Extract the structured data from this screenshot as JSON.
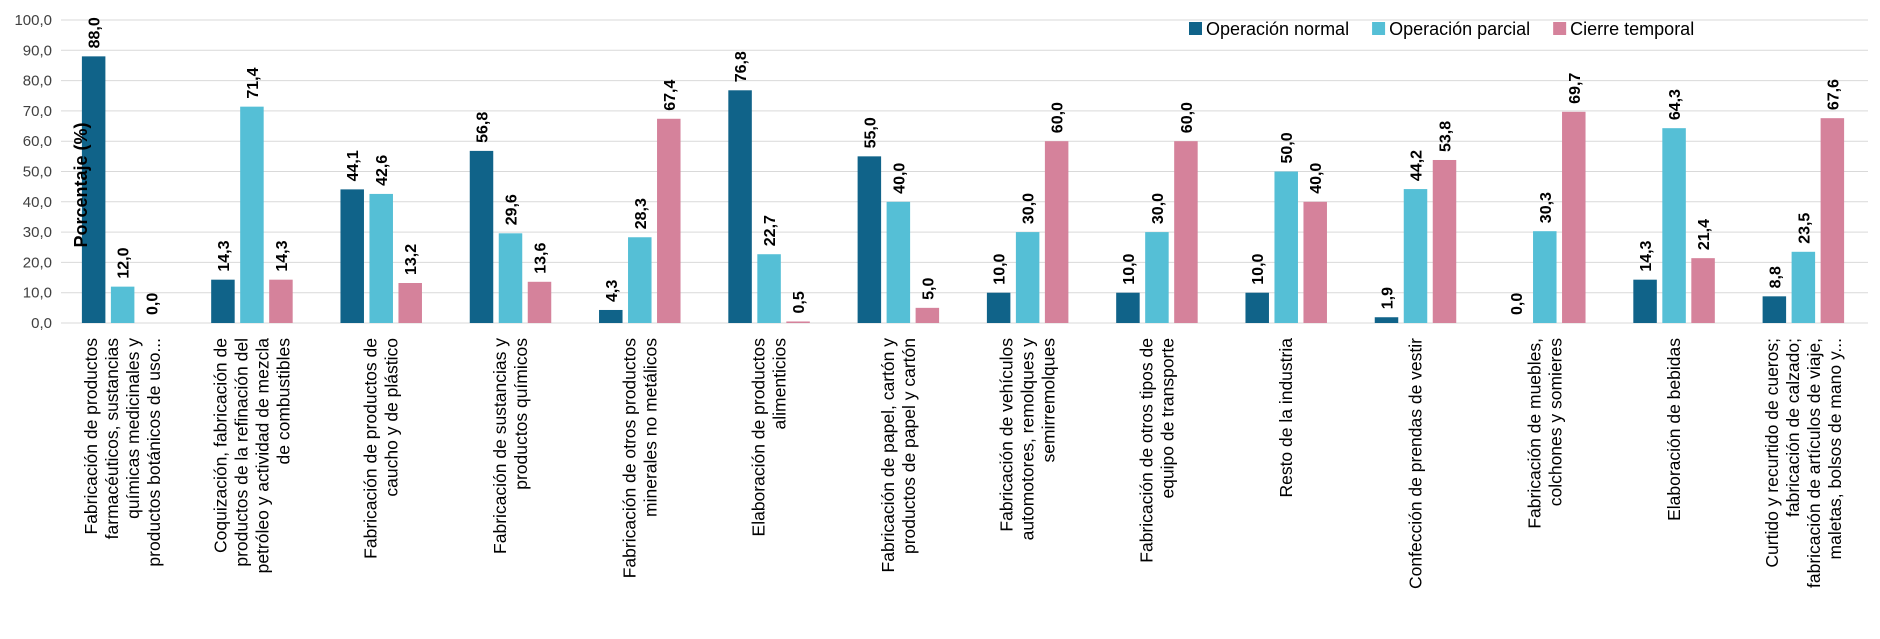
{
  "chart_data": {
    "type": "bar",
    "ylabel": "Porcentaje (%)",
    "ylim": [
      0,
      100
    ],
    "yticks": [
      "0,0",
      "10,0",
      "20,0",
      "30,0",
      "40,0",
      "50,0",
      "60,0",
      "70,0",
      "80,0",
      "90,0",
      "100,0"
    ],
    "grid": true,
    "legend_position": "top-right",
    "categories": [
      [
        "Fabricación de productos",
        "farmacéuticos, sustancias",
        "químicas medicinales y",
        "productos botánicos de uso..."
      ],
      [
        "Coquización, fabricación de",
        "productos de la refinación del",
        "petróleo y actividad de mezcla",
        "de combustibles"
      ],
      [
        "Fabricación de productos de",
        "caucho y de plástico"
      ],
      [
        "Fabricación de sustancias y",
        "productos químicos"
      ],
      [
        "Fabricación de otros productos",
        "minerales no metálicos"
      ],
      [
        "Elaboración de productos",
        "alimenticios"
      ],
      [
        "Fabricación de papel, cartón y",
        "productos de papel y cartón"
      ],
      [
        "Fabricación de vehículos",
        "automotores, remolques y",
        "semirremolques"
      ],
      [
        "Fabricación de otros tipos de",
        "equipo de transporte"
      ],
      [
        "Resto de la industria"
      ],
      [
        "Confección de prendas de vestir"
      ],
      [
        "Fabricación de muebles,",
        "colchones y somieres"
      ],
      [
        "Elaboración de bebidas"
      ],
      [
        "Curtido y recurtido de cueros;",
        "fabricación de calzado;",
        "fabricación de artículos de viaje,",
        "maletas, bolsos de mano y..."
      ]
    ],
    "series": [
      {
        "name": "Operación normal",
        "color": "#106389",
        "values": [
          88.0,
          14.3,
          44.1,
          56.8,
          4.3,
          76.8,
          55.0,
          10.0,
          10.0,
          10.0,
          1.9,
          0.0,
          14.3,
          8.8
        ],
        "labels": [
          "88,0",
          "14,3",
          "44,1",
          "56,8",
          "4,3",
          "76,8",
          "55,0",
          "10,0",
          "10,0",
          "10,0",
          "1,9",
          "0,0",
          "14,3",
          "8,8"
        ]
      },
      {
        "name": "Operación parcial",
        "color": "#55BFD6",
        "values": [
          12.0,
          71.4,
          42.6,
          29.6,
          28.3,
          22.7,
          40.0,
          30.0,
          30.0,
          50.0,
          44.2,
          30.3,
          64.3,
          23.5
        ],
        "labels": [
          "12,0",
          "71,4",
          "42,6",
          "29,6",
          "28,3",
          "22,7",
          "40,0",
          "30,0",
          "30,0",
          "50,0",
          "44,2",
          "30,3",
          "64,3",
          "23,5"
        ]
      },
      {
        "name": "Cierre temporal",
        "color": "#D5829B",
        "values": [
          0.0,
          14.3,
          13.2,
          13.6,
          67.4,
          0.5,
          5.0,
          60.0,
          60.0,
          40.0,
          53.8,
          69.7,
          21.4,
          67.6
        ],
        "labels": [
          "0,0",
          "14,3",
          "13,2",
          "13,6",
          "67,4",
          "0,5",
          "5,0",
          "60,0",
          "60,0",
          "40,0",
          "53,8",
          "69,7",
          "21,4",
          "67,6"
        ]
      }
    ]
  }
}
